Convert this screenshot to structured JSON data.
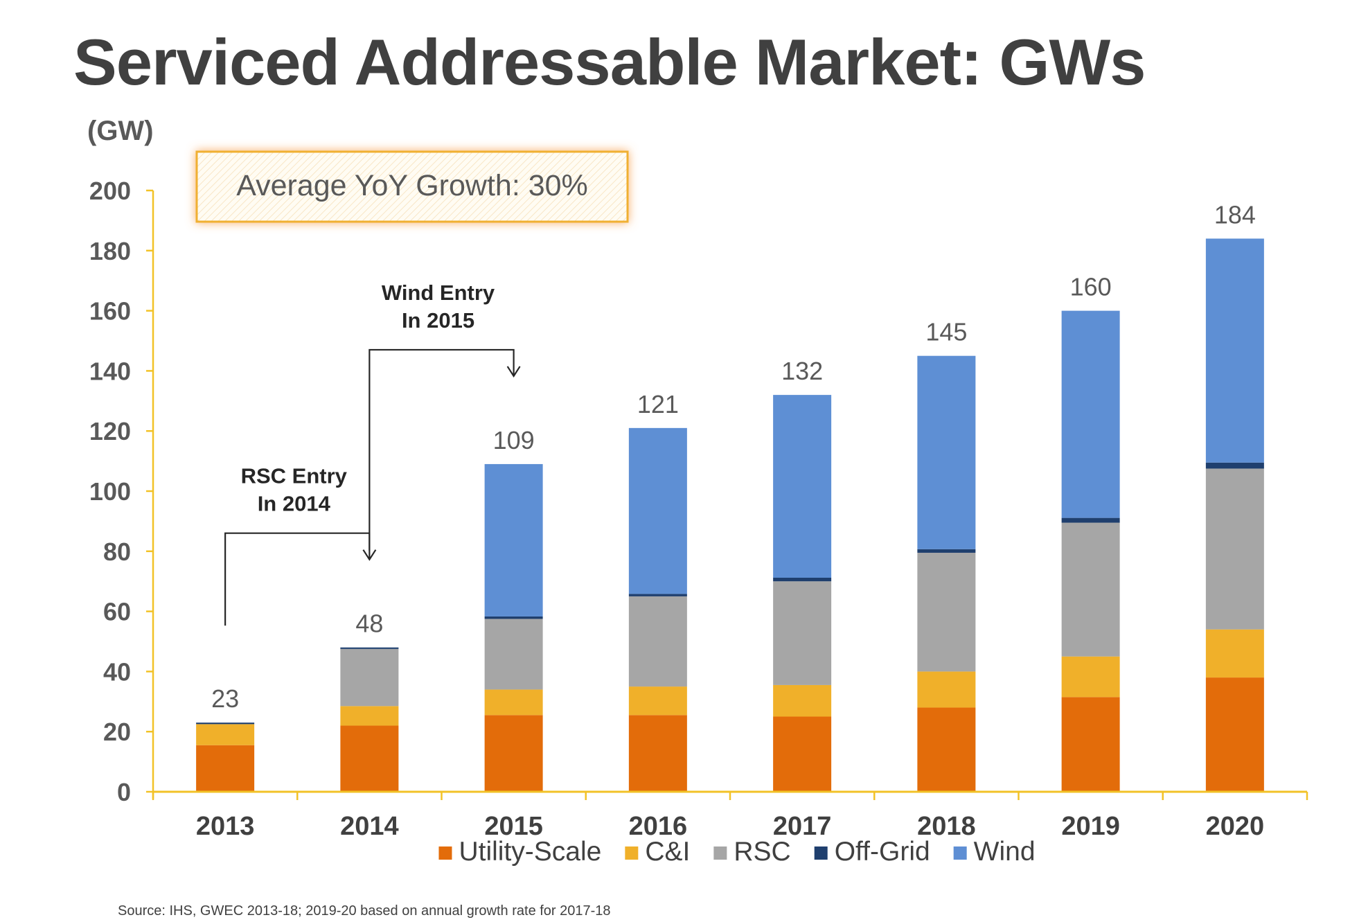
{
  "slide": {
    "title": "Serviced Addressable Market: GWs",
    "source": "Source:  IHS, GWEC 2013-18; 2019-20 based on annual growth rate for 2017-18"
  },
  "colors": {
    "title_text": "#404040",
    "axis_line": "#F2C227",
    "callout_border": "#F0B030",
    "callout_glow": "#F8A95C"
  },
  "chart_data": {
    "type": "bar",
    "stacked": true,
    "unit_label": "(GW)",
    "categories": [
      "2013",
      "2014",
      "2015",
      "2016",
      "2017",
      "2018",
      "2019",
      "2020"
    ],
    "ylim": [
      0,
      200
    ],
    "yticks": [
      0,
      20,
      40,
      60,
      80,
      100,
      120,
      140,
      160,
      180,
      200
    ],
    "grid": false,
    "legend_position": "bottom",
    "series": [
      {
        "name": "Utility-Scale",
        "color": "#E36C0A",
        "values": [
          15.5,
          22,
          25.5,
          25.5,
          25,
          28,
          31.5,
          38
        ]
      },
      {
        "name": "C&I",
        "color": "#F0B02A",
        "values": [
          7,
          6.5,
          8.5,
          9.5,
          10.5,
          12,
          13.5,
          16
        ]
      },
      {
        "name": "RSC",
        "color": "#A6A6A6",
        "values": [
          0,
          19,
          23.5,
          30,
          34.5,
          39.5,
          44.5,
          53.5
        ]
      },
      {
        "name": "Off-Grid",
        "color": "#1F3F6E",
        "values": [
          0.5,
          0.5,
          0.8,
          0.8,
          1.2,
          1.2,
          1.6,
          2
        ]
      },
      {
        "name": "Wind",
        "color": "#5E8FD4",
        "values": [
          0,
          0,
          50.7,
          55.2,
          60.8,
          64.3,
          68.9,
          74.5
        ]
      }
    ],
    "totals": [
      "23",
      "48",
      "109",
      "121",
      "132",
      "145",
      "160",
      "184"
    ],
    "annotations": [
      {
        "line1": "RSC Entry",
        "line2": "In 2014",
        "from": "2013",
        "to": "2014"
      },
      {
        "line1": "Wind Entry",
        "line2": "In 2015",
        "from": "2014",
        "to": "2015"
      }
    ],
    "callout": "Average YoY Growth: 30%"
  }
}
